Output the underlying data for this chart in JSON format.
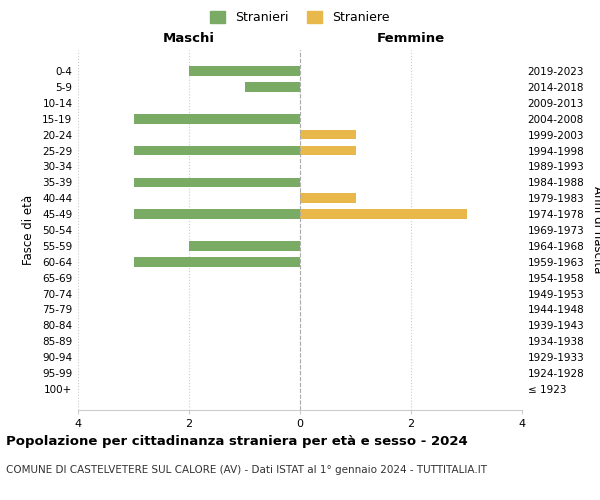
{
  "age_groups": [
    "100+",
    "95-99",
    "90-94",
    "85-89",
    "80-84",
    "75-79",
    "70-74",
    "65-69",
    "60-64",
    "55-59",
    "50-54",
    "45-49",
    "40-44",
    "35-39",
    "30-34",
    "25-29",
    "20-24",
    "15-19",
    "10-14",
    "5-9",
    "0-4"
  ],
  "birth_years": [
    "≤ 1923",
    "1924-1928",
    "1929-1933",
    "1934-1938",
    "1939-1943",
    "1944-1948",
    "1949-1953",
    "1954-1958",
    "1959-1963",
    "1964-1968",
    "1969-1973",
    "1974-1978",
    "1979-1983",
    "1984-1988",
    "1989-1993",
    "1994-1998",
    "1999-2003",
    "2004-2008",
    "2009-2013",
    "2014-2018",
    "2019-2023"
  ],
  "stranieri": [
    0,
    0,
    0,
    0,
    0,
    0,
    0,
    0,
    3,
    2,
    0,
    3,
    0,
    3,
    0,
    3,
    0,
    3,
    0,
    1,
    2
  ],
  "straniere": [
    0,
    0,
    0,
    0,
    0,
    0,
    0,
    0,
    0,
    0,
    0,
    3,
    1,
    0,
    0,
    1,
    1,
    0,
    0,
    0,
    0
  ],
  "color_stranieri": "#7aab65",
  "color_straniere": "#e8b84b",
  "title_main": "Popolazione per cittadinanza straniera per età e sesso - 2024",
  "title_sub": "COMUNE DI CASTELVETERE SUL CALORE (AV) - Dati ISTAT al 1° gennaio 2024 - TUTTITALIA.IT",
  "xlabel_left": "Maschi",
  "xlabel_right": "Femmine",
  "ylabel_left": "Fasce di età",
  "ylabel_right": "Anni di nascita",
  "legend_stranieri": "Stranieri",
  "legend_straniere": "Straniere",
  "xlim": 4,
  "background_color": "#ffffff",
  "grid_color": "#cccccc"
}
